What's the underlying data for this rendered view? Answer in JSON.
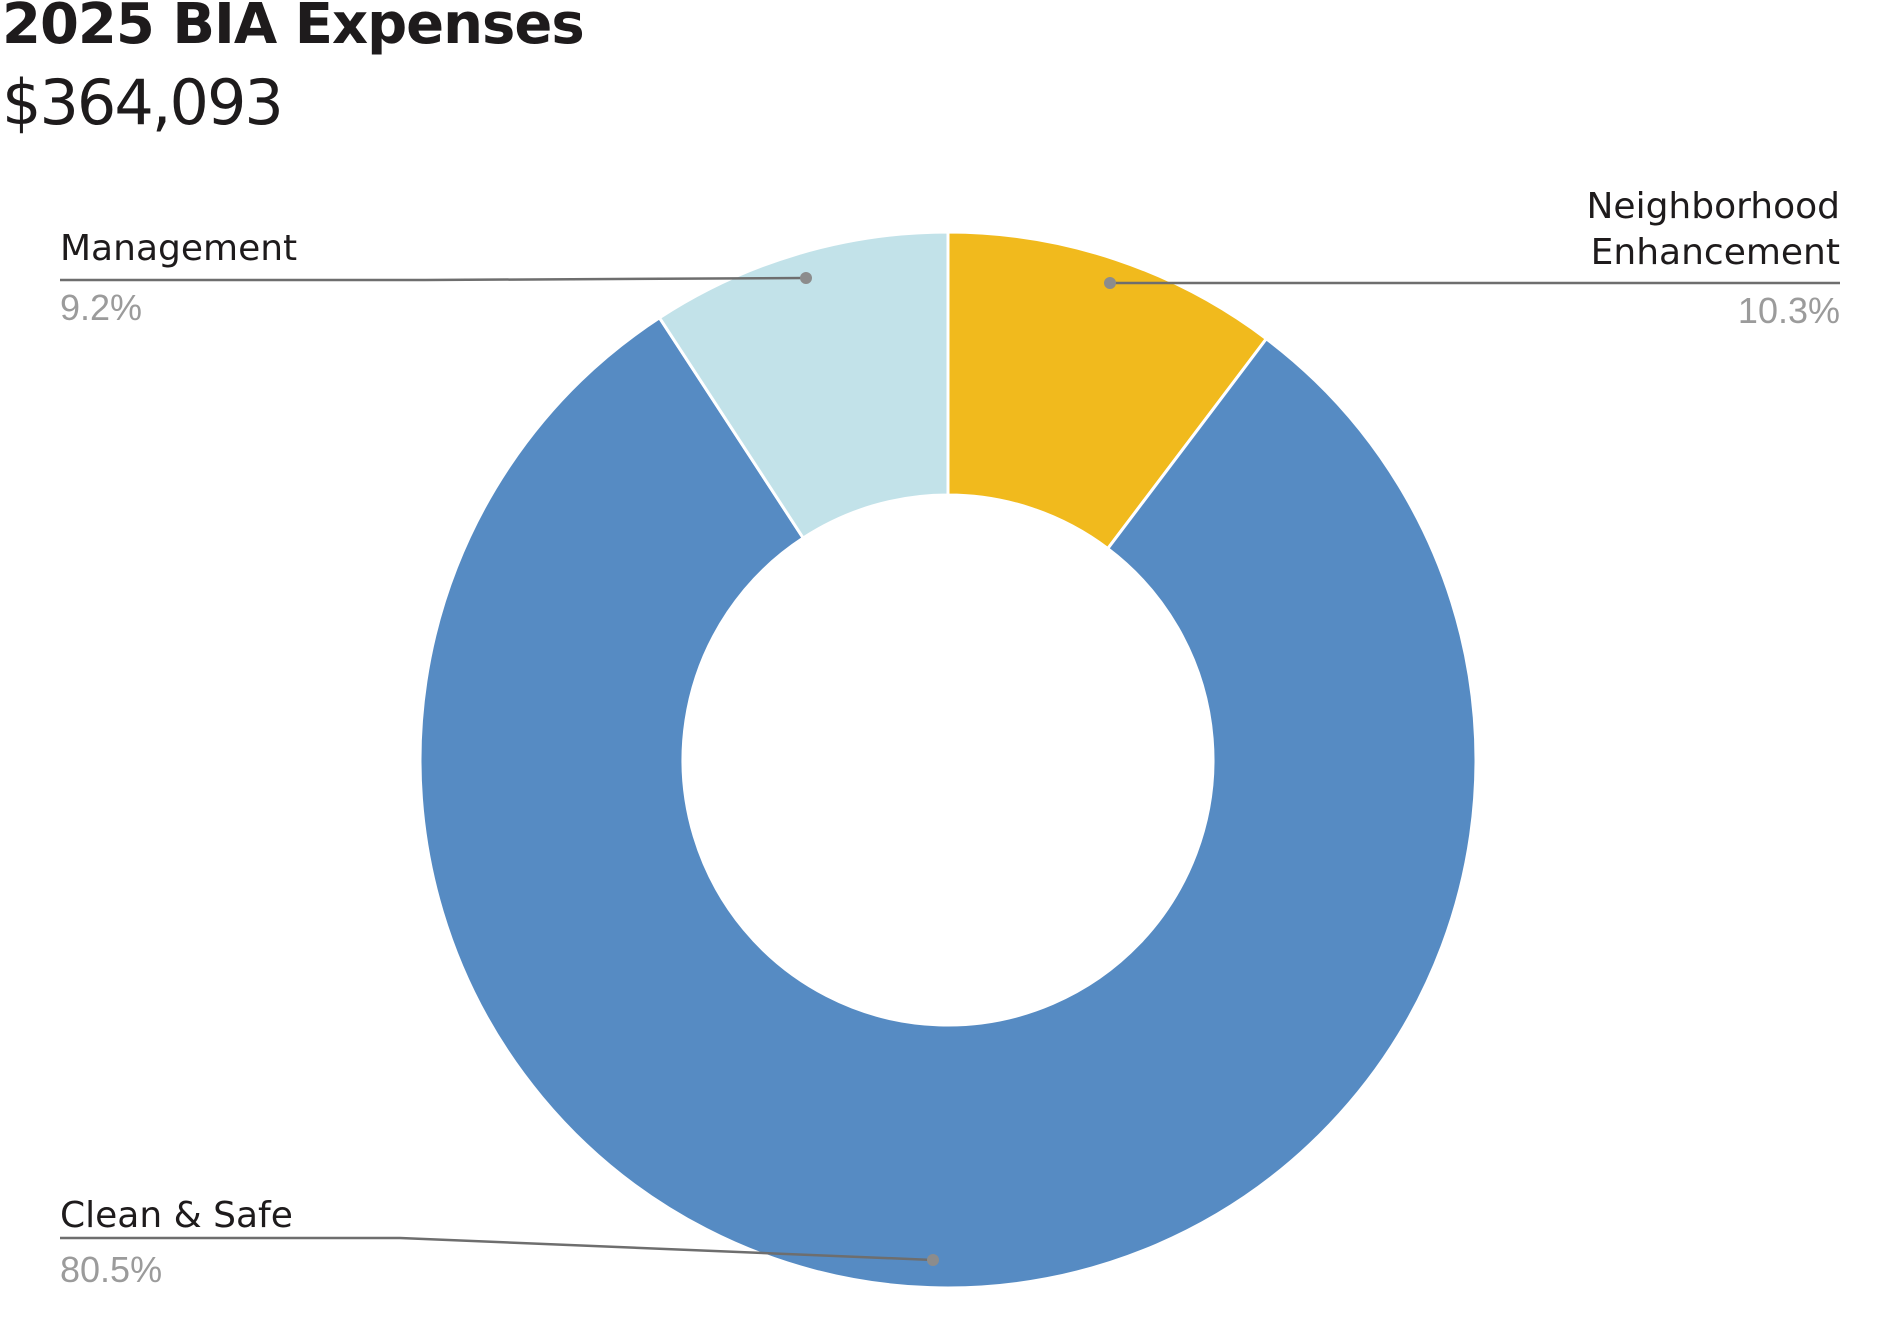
{
  "title": "2025 BIA Expenses",
  "subtitle": "$364,093",
  "chart_data": {
    "type": "pie",
    "donut": true,
    "title": "2025 BIA Expenses",
    "subtitle": "$364,093",
    "slices": [
      {
        "name": "Neighborhood Enhancement",
        "label_lines": [
          "Neighborhood",
          "Enhancement"
        ],
        "value": 10.3,
        "value_label": "10.3%",
        "color": "#f1ba1d"
      },
      {
        "name": "Clean & Safe",
        "label_lines": [
          "Clean & Safe"
        ],
        "value": 80.5,
        "value_label": "80.5%",
        "color": "#568bc3"
      },
      {
        "name": "Management",
        "label_lines": [
          "Management"
        ],
        "value": 9.2,
        "value_label": "9.2%",
        "color": "#c2e2e9"
      }
    ],
    "start_angle_deg": 0,
    "direction": "clockwise",
    "label_color": "#1e1b1c",
    "value_label_color": "#9b9b9b",
    "leader_line_color": "#6e6e6e",
    "legend": "none"
  }
}
